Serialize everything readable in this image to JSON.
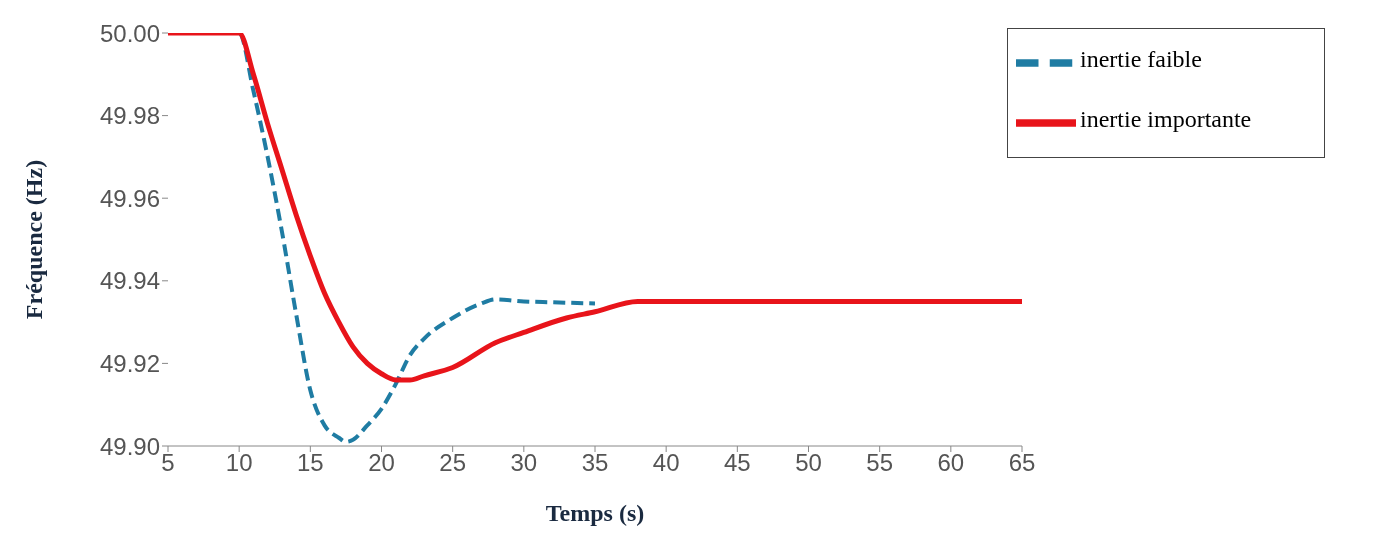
{
  "chart_data": {
    "type": "line",
    "xlabel": "Temps (s)",
    "ylabel": "Fréquence (Hz)",
    "xlim": [
      5,
      65
    ],
    "xticks": [
      5,
      10,
      15,
      20,
      25,
      30,
      35,
      40,
      45,
      50,
      55,
      60,
      65
    ],
    "ylim": [
      49.9,
      50.0
    ],
    "yticks": [
      {
        "value": 49.9,
        "label": "49.90"
      },
      {
        "value": 49.92,
        "label": "49.92"
      },
      {
        "value": 49.94,
        "label": "49.94"
      },
      {
        "value": 49.96,
        "label": "49.96"
      },
      {
        "value": 49.98,
        "label": "49.98"
      },
      {
        "value": 50.0,
        "label": "50.00"
      }
    ],
    "grid": false,
    "legend": "top right",
    "marker": "none",
    "series": [
      {
        "name": "inertie faible",
        "color": "#1f7ca3",
        "line_style": "dashed",
        "x": [
          5,
          10,
          11,
          12,
          13,
          14,
          15,
          16,
          17,
          17.5,
          18,
          19,
          20,
          21,
          22,
          23,
          25,
          27,
          28,
          30,
          32,
          35
        ],
        "values": [
          50.0,
          50.0,
          49.986,
          49.97,
          49.952,
          49.932,
          49.9135,
          49.905,
          49.902,
          49.901,
          49.9015,
          49.905,
          49.909,
          49.915,
          49.922,
          49.926,
          49.931,
          49.9345,
          49.9355,
          49.935,
          49.9348,
          49.9345
        ]
      },
      {
        "name": "inertie importante",
        "color": "#e8141a",
        "line_style": "solid",
        "x": [
          5,
          10,
          11,
          12,
          13,
          14,
          15,
          16,
          17,
          18,
          19,
          20,
          21,
          22,
          23,
          25,
          28,
          30,
          33,
          35,
          38,
          65
        ],
        "values": [
          50.0,
          50.0,
          49.99,
          49.978,
          49.967,
          49.956,
          49.946,
          49.937,
          49.93,
          49.924,
          49.92,
          49.9175,
          49.916,
          49.916,
          49.917,
          49.919,
          49.925,
          49.9275,
          49.931,
          49.9325,
          49.935,
          49.935
        ]
      }
    ]
  }
}
